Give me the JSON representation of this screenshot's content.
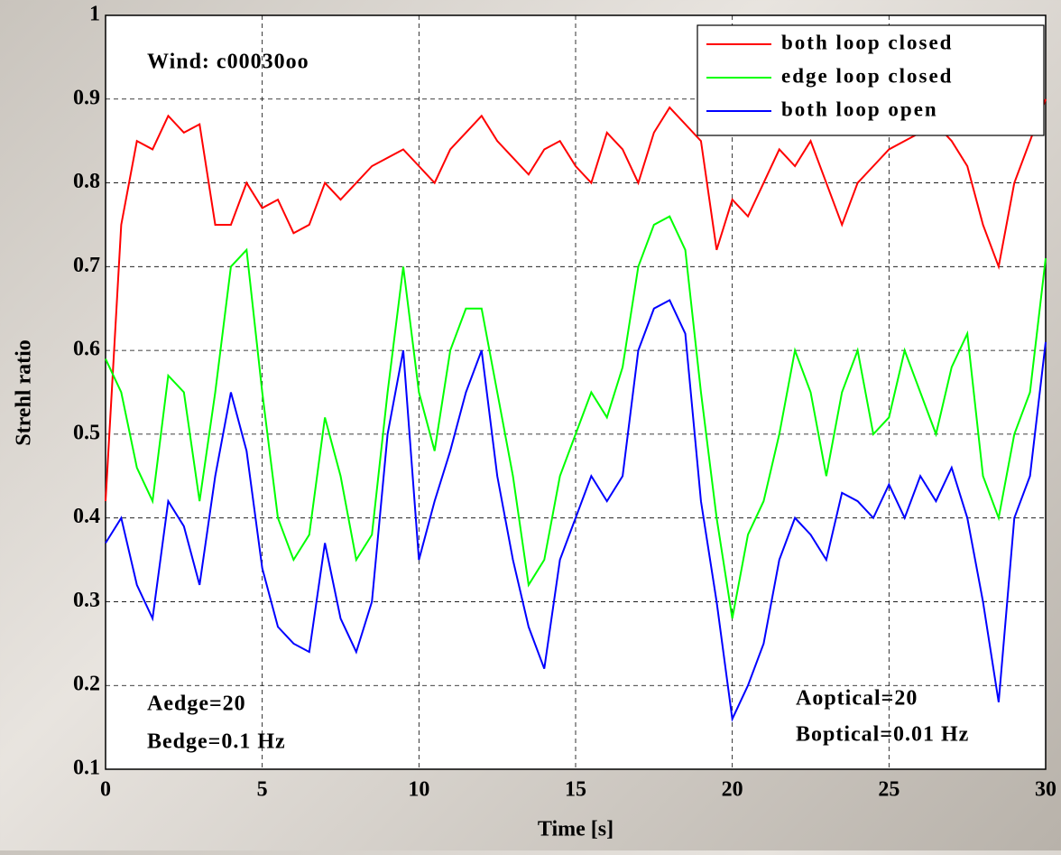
{
  "chart_data": {
    "type": "line",
    "annotations": [
      "Wind: c00030oo",
      "Aedge=20",
      "Bedge=0.1 Hz",
      "Aoptical=20",
      "Boptical=0.01 Hz"
    ],
    "x_label": "Time [s]",
    "y_label": "Strehl ratio",
    "x": [
      0,
      0.5,
      1,
      1.5,
      2,
      2.5,
      3,
      3.5,
      4,
      4.5,
      5,
      5.5,
      6,
      6.5,
      7,
      7.5,
      8,
      8.5,
      9,
      9.5,
      10,
      10.5,
      11,
      11.5,
      12,
      12.5,
      13,
      13.5,
      14,
      14.5,
      15,
      15.5,
      16,
      16.5,
      17,
      17.5,
      18,
      18.5,
      19,
      19.5,
      20,
      20.5,
      21,
      21.5,
      22,
      22.5,
      23,
      23.5,
      24,
      24.5,
      25,
      25.5,
      26,
      26.5,
      27,
      27.5,
      28,
      28.5,
      29,
      29.5,
      30
    ],
    "series": [
      {
        "name": "both loop closed",
        "color": "#ff0000",
        "values": [
          0.42,
          0.75,
          0.85,
          0.84,
          0.88,
          0.86,
          0.87,
          0.75,
          0.75,
          0.8,
          0.77,
          0.78,
          0.74,
          0.75,
          0.8,
          0.78,
          0.8,
          0.82,
          0.83,
          0.84,
          0.82,
          0.8,
          0.84,
          0.86,
          0.88,
          0.85,
          0.83,
          0.81,
          0.84,
          0.85,
          0.82,
          0.8,
          0.86,
          0.84,
          0.8,
          0.86,
          0.89,
          0.87,
          0.85,
          0.72,
          0.78,
          0.76,
          0.8,
          0.84,
          0.82,
          0.85,
          0.8,
          0.75,
          0.8,
          0.82,
          0.84,
          0.85,
          0.86,
          0.87,
          0.85,
          0.82,
          0.75,
          0.7,
          0.8,
          0.85,
          0.9
        ]
      },
      {
        "name": "edge loop closed",
        "color": "#00ff00",
        "values": [
          0.59,
          0.55,
          0.46,
          0.42,
          0.57,
          0.55,
          0.42,
          0.55,
          0.7,
          0.72,
          0.55,
          0.4,
          0.35,
          0.38,
          0.52,
          0.45,
          0.35,
          0.38,
          0.55,
          0.7,
          0.55,
          0.48,
          0.6,
          0.65,
          0.65,
          0.55,
          0.45,
          0.32,
          0.35,
          0.45,
          0.5,
          0.55,
          0.52,
          0.58,
          0.7,
          0.75,
          0.76,
          0.72,
          0.55,
          0.4,
          0.28,
          0.38,
          0.42,
          0.5,
          0.6,
          0.55,
          0.45,
          0.55,
          0.6,
          0.5,
          0.52,
          0.6,
          0.55,
          0.5,
          0.58,
          0.62,
          0.45,
          0.4,
          0.5,
          0.55,
          0.71
        ]
      },
      {
        "name": "both loop open",
        "color": "#0000ff",
        "values": [
          0.37,
          0.4,
          0.32,
          0.28,
          0.42,
          0.39,
          0.32,
          0.45,
          0.55,
          0.48,
          0.34,
          0.27,
          0.25,
          0.24,
          0.37,
          0.28,
          0.24,
          0.3,
          0.5,
          0.6,
          0.35,
          0.42,
          0.48,
          0.55,
          0.6,
          0.45,
          0.35,
          0.27,
          0.22,
          0.35,
          0.4,
          0.45,
          0.42,
          0.45,
          0.6,
          0.65,
          0.66,
          0.62,
          0.42,
          0.3,
          0.16,
          0.2,
          0.25,
          0.35,
          0.4,
          0.38,
          0.35,
          0.43,
          0.42,
          0.4,
          0.44,
          0.4,
          0.45,
          0.42,
          0.46,
          0.4,
          0.3,
          0.18,
          0.4,
          0.45,
          0.61
        ]
      }
    ],
    "xlim": [
      0,
      30
    ],
    "xticks": [
      0,
      5,
      10,
      15,
      20,
      25,
      30
    ],
    "ylim": [
      0.1,
      1
    ],
    "yticks": [
      0.1,
      0.2,
      0.3,
      0.4,
      0.5,
      0.6,
      0.7,
      0.8,
      0.9,
      1
    ],
    "grid": true,
    "legend": "upper right"
  }
}
